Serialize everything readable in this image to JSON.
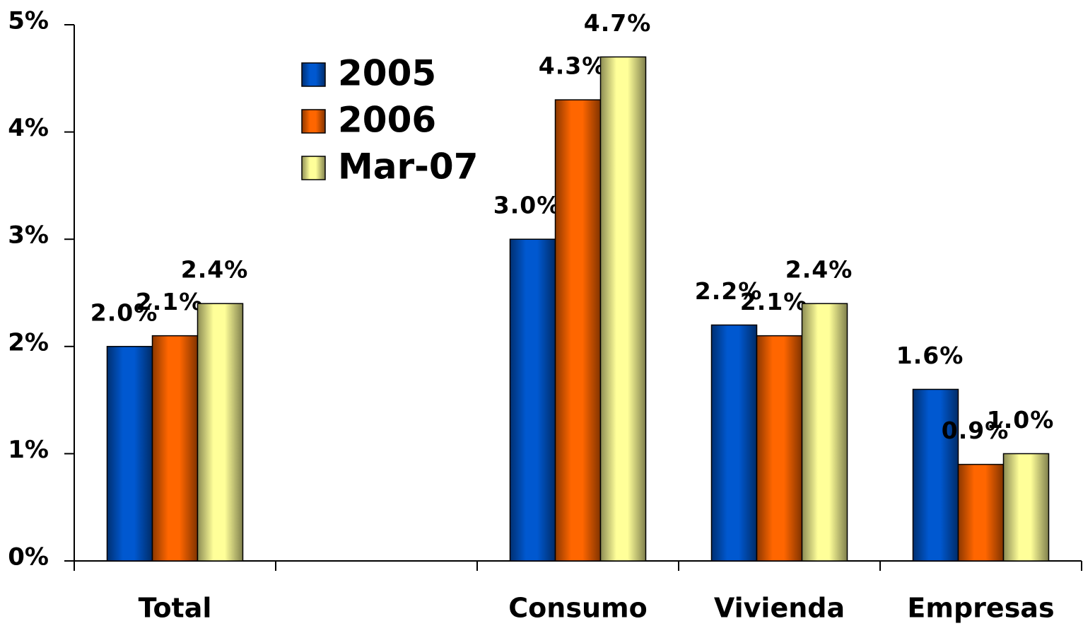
{
  "chart_data": {
    "type": "bar",
    "categories": [
      "Total",
      null,
      "Consumo",
      "Vivienda",
      "Empresas"
    ],
    "series": [
      {
        "name": "2005",
        "color": "#0058d0",
        "values": [
          2.0,
          null,
          3.0,
          2.2,
          1.6
        ],
        "value_labels": [
          "2.0%",
          null,
          "3.0%",
          "2.2%",
          "1.6%"
        ]
      },
      {
        "name": "2006",
        "color": "#ff6600",
        "values": [
          2.1,
          null,
          4.3,
          2.1,
          0.9
        ],
        "value_labels": [
          "2.1%",
          null,
          "4.3%",
          "2.1%",
          "0.9%"
        ]
      },
      {
        "name": "Mar-07",
        "color": "#ffff99",
        "values": [
          2.4,
          null,
          4.7,
          2.4,
          1.0
        ],
        "value_labels": [
          "2.4%",
          null,
          "4.7%",
          "2.4%",
          "1.0%"
        ]
      }
    ],
    "ylim": [
      0,
      5
    ],
    "yticks": [
      {
        "value": 0,
        "label": "0%"
      },
      {
        "value": 1,
        "label": "1%"
      },
      {
        "value": 2,
        "label": "2%"
      },
      {
        "value": 3,
        "label": "3%"
      },
      {
        "value": 4,
        "label": "4%"
      },
      {
        "value": 5,
        "label": "5%"
      }
    ],
    "legend": "upper left"
  }
}
